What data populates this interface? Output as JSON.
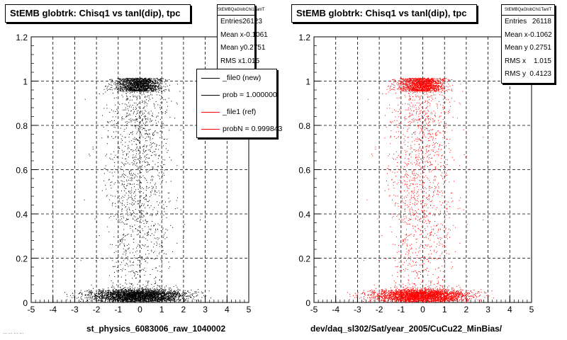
{
  "chart_data": [
    {
      "type": "scatter",
      "title": "StEMB globtrk: Chisq1 vs tanl(dip), tpc",
      "xlabel": "st_physics_6083006_raw_1040002",
      "ylabel": "",
      "xlim": [
        -5,
        5
      ],
      "ylim": [
        0,
        1.2
      ],
      "x_ticks": [
        "-5",
        "-4",
        "-3",
        "-2",
        "-1",
        "0",
        "1",
        "2",
        "3",
        "4",
        "5"
      ],
      "y_ticks": [
        "0",
        "0.2",
        "0.4",
        "0.6",
        "0.8",
        "1",
        "1.2"
      ],
      "grid": true,
      "marker_color": "#000000",
      "stats": {
        "header": "StEMBQaGlobChi1TanlT",
        "rows": [
          {
            "label": "Entries",
            "value": "26123"
          },
          {
            "label": "Mean x",
            "value": "-0.1061"
          },
          {
            "label": "Mean y",
            "value": "0.2751"
          },
          {
            "label": "RMS x",
            "value": "1.015"
          }
        ]
      },
      "legend": [
        {
          "label": "_file0 (new)",
          "color": "#000000"
        },
        {
          "label": "prob = 1.000000",
          "color": "#000000"
        },
        {
          "label": "_file1 (ref)",
          "color": "#ff0000"
        },
        {
          "label": "probN = 0.999843",
          "color": "#ff0000"
        }
      ]
    },
    {
      "type": "scatter",
      "title": "StEMB globtrk: Chisq1 vs tanl(dip), tpc",
      "xlabel": "dev/daq_sl302/Sat/year_2005/CuCu22_MinBias/",
      "ylabel": "",
      "xlim": [
        -5,
        5
      ],
      "ylim": [
        0,
        1.2
      ],
      "x_ticks": [
        "-5",
        "-4",
        "-3",
        "-2",
        "-1",
        "0",
        "1",
        "2",
        "3",
        "4",
        "5"
      ],
      "y_ticks": [
        "0",
        "0.2",
        "0.4",
        "0.6",
        "0.8",
        "1",
        "1.2"
      ],
      "grid": true,
      "marker_color": "#ff0000",
      "stats": {
        "header": "StEMBQaGlobChi1TanlT",
        "rows": [
          {
            "label": "Entries",
            "value": "26118"
          },
          {
            "label": "Mean x",
            "value": "-0.1062"
          },
          {
            "label": "Mean y",
            "value": "0.2751"
          },
          {
            "label": "RMS x",
            "value": "1.015"
          },
          {
            "label": "RMS y",
            "value": "0.4123"
          }
        ]
      }
    }
  ],
  "footer": "... ... ... ..."
}
